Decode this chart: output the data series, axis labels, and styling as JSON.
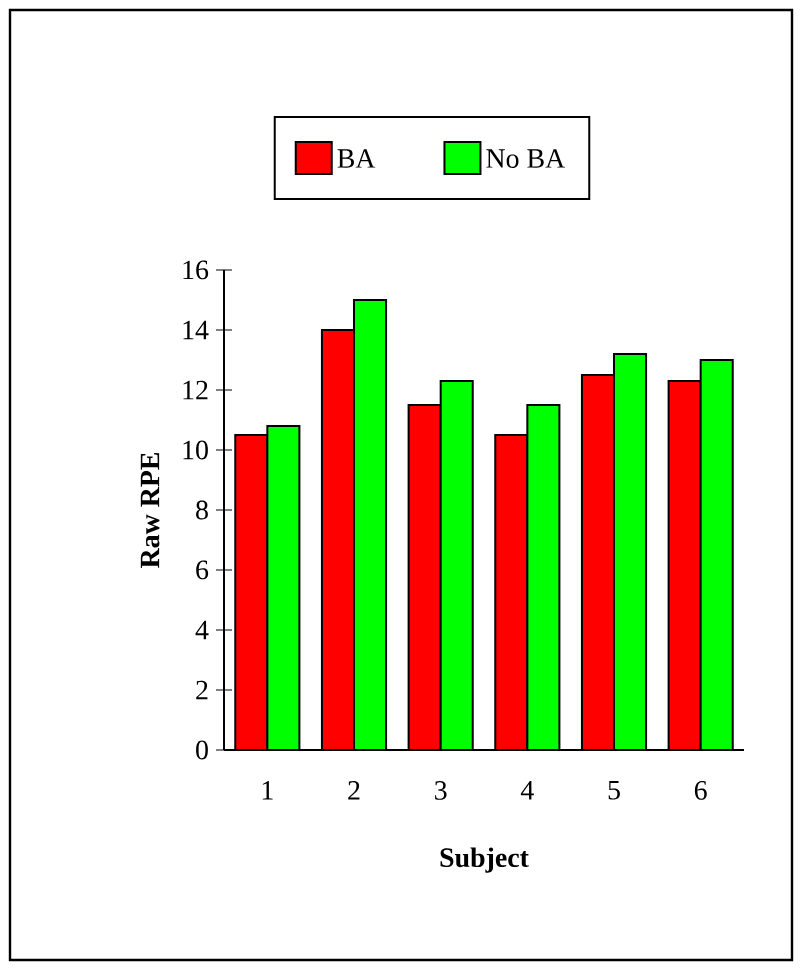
{
  "chart_data": {
    "type": "bar",
    "xlabel": "Subject",
    "ylabel": "Raw RPE",
    "categories": [
      "1",
      "2",
      "3",
      "4",
      "5",
      "6"
    ],
    "series": [
      {
        "name": "BA",
        "color": "#ff0000",
        "values": [
          10.5,
          14.0,
          11.5,
          10.5,
          12.5,
          12.3
        ]
      },
      {
        "name": "No BA",
        "color": "#00ff00",
        "values": [
          10.8,
          15.0,
          12.3,
          11.5,
          13.2,
          13.0
        ]
      }
    ],
    "ylim": [
      0,
      16
    ],
    "yticks": [
      0,
      2,
      4,
      6,
      8,
      10,
      12,
      14,
      16
    ],
    "legend": "top"
  }
}
